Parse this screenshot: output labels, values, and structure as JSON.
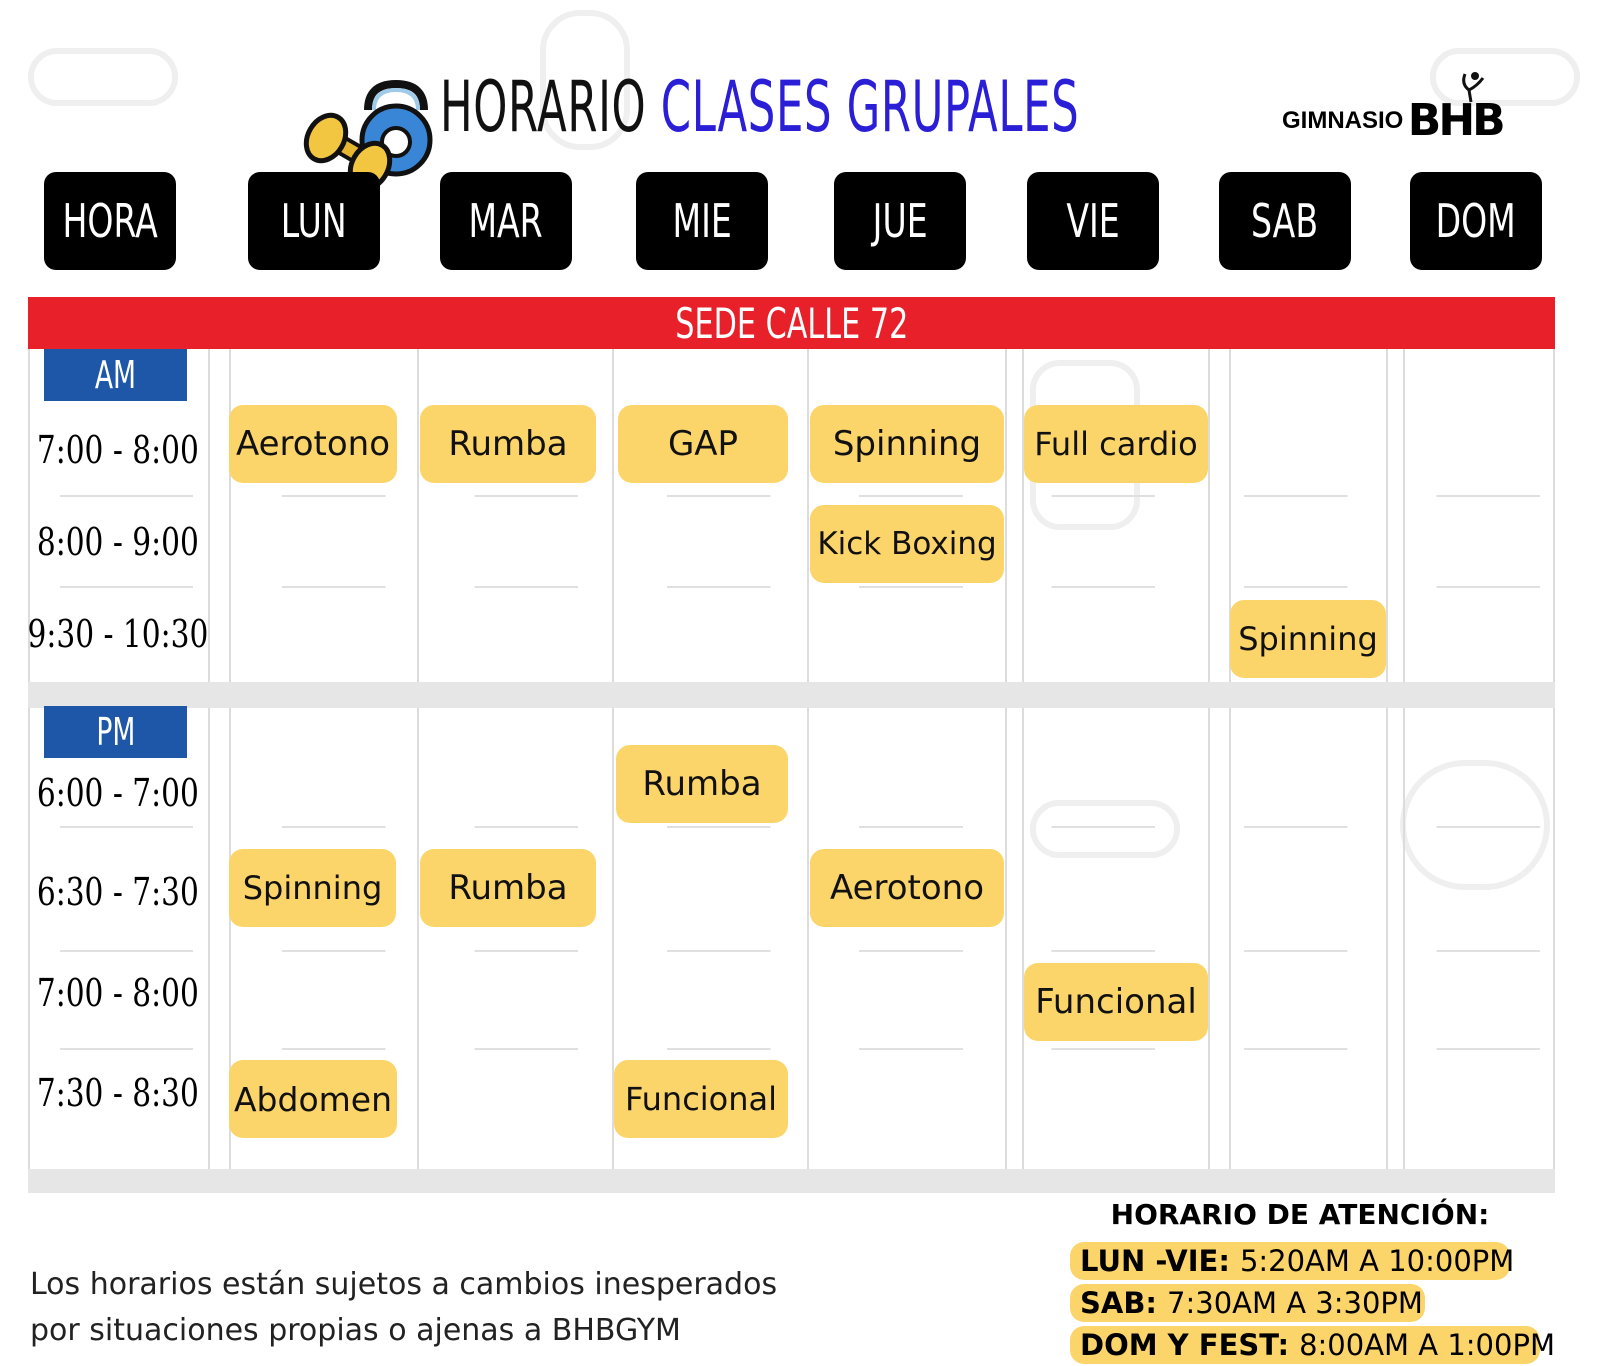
{
  "header": {
    "title_part1": "HORARIO",
    "title_part2": "CLASES GRUPALES",
    "logo_small": "GIMNASIO",
    "logo_big": "BHB"
  },
  "days": [
    "HORA",
    "LUN",
    "MAR",
    "MIE",
    "JUE",
    "VIE",
    "SAB",
    "DOM"
  ],
  "location": "SEDE CALLE 72",
  "am": {
    "label": "AM",
    "times": [
      "7:00 - 8:00",
      "8:00 - 9:00",
      "9:30 - 10:30"
    ]
  },
  "pm": {
    "label": "PM",
    "times": [
      "6:00 - 7:00",
      "6:30 - 7:30",
      "7:00 - 8:00",
      "7:30 - 8:30"
    ]
  },
  "classes": {
    "am_0_lun": "Aerotono",
    "am_0_mar": "Rumba",
    "am_0_mie": "GAP",
    "am_0_jue": "Spinning",
    "am_0_vie": "Full cardio",
    "am_1_jue": "Kick Boxing",
    "am_2_sab": "Spinning",
    "pm_0_mie": "Rumba",
    "pm_1_lun": "Spinning",
    "pm_1_mar": "Rumba",
    "pm_1_jue": "Aerotono",
    "pm_2_vie": "Funcional",
    "pm_3_lun": "Abdomen",
    "pm_3_mie": "Funcional"
  },
  "notice": {
    "line1": "Los horarios están sujetos a cambios inesperados",
    "line2": "por situaciones propias o ajenas a BHBGYM"
  },
  "hours": {
    "title": "HORARIO DE ATENCIÓN:",
    "lines": [
      {
        "label": "LUN -VIE:",
        "value": "5:20AM A 10:00PM"
      },
      {
        "label": "SAB:",
        "value": "7:30AM A 3:30PM"
      },
      {
        "label": "DOM Y FEST:",
        "value": "8:00AM A 1:00PM"
      }
    ]
  },
  "colors": {
    "title_accent": "#2a1fd6",
    "location_bar": "#e8202a",
    "period_badge": "#1f57a8",
    "class_highlight": "#fcd56a"
  }
}
